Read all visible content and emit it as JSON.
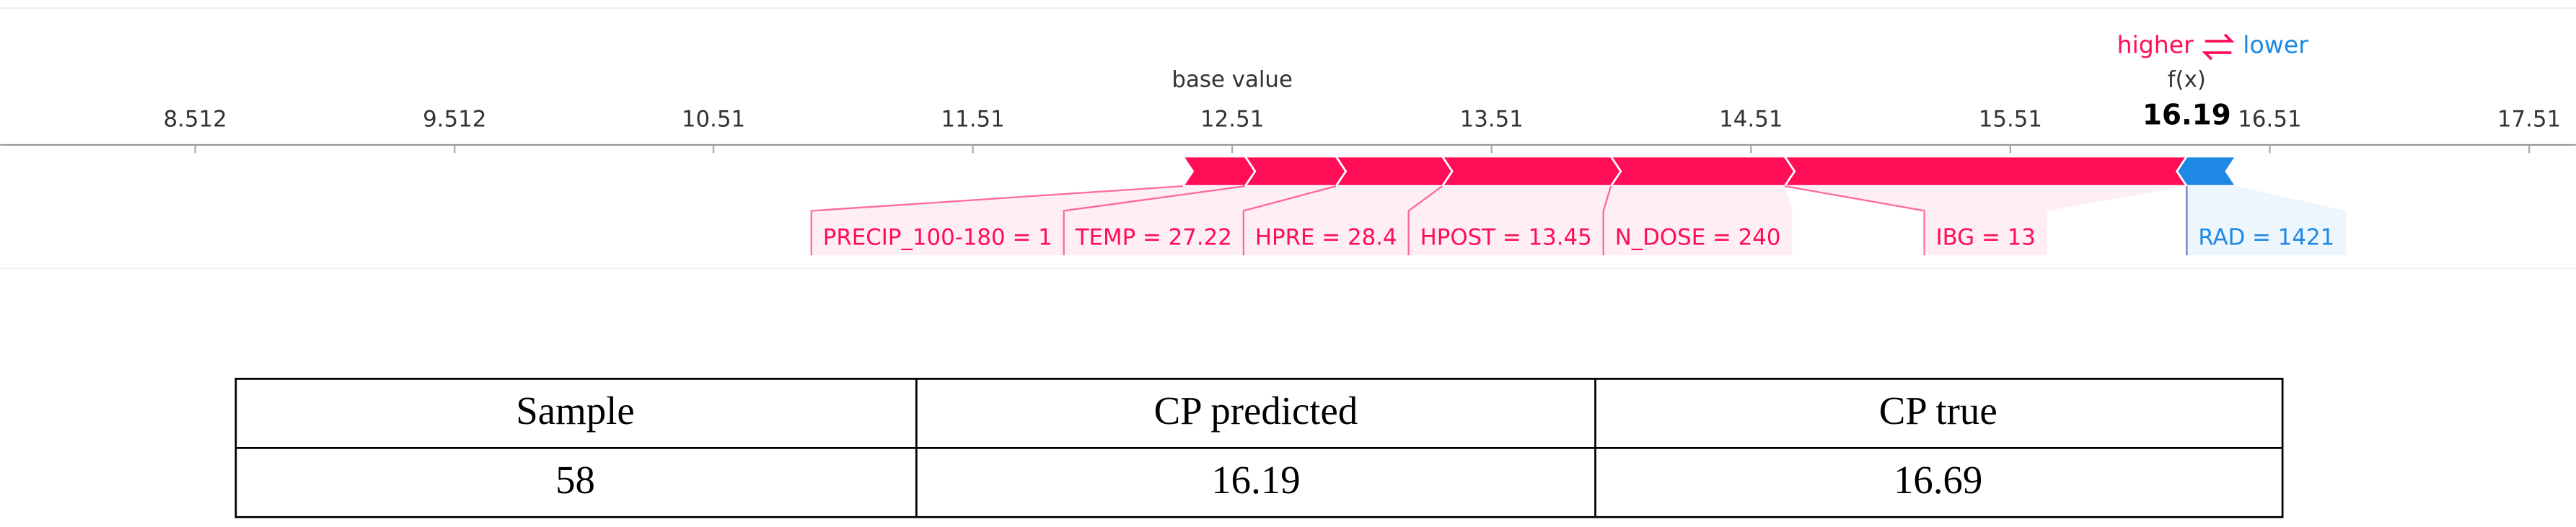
{
  "chart_data": {
    "type": "force",
    "xlim": [
      7.76,
      17.69
    ],
    "xticks": [
      8.512,
      9.512,
      10.51,
      11.51,
      12.51,
      13.51,
      14.51,
      15.51,
      16.51,
      17.51
    ],
    "base_value": 12.51,
    "base_label": "base value",
    "output_value": 16.19,
    "output_label": "f(x)",
    "higher_label": "higher",
    "lower_label": "lower",
    "positive_color": "#ff0d57",
    "negative_color": "#1e88e5",
    "categories": [
      "PRECIP_100-180 = 1",
      "TEMP = 27.22",
      "HPRE = 28.4",
      "HPOST = 13.45",
      "N_DOSE = 240",
      "IBG = 13",
      "RAD = 1421"
    ],
    "values": [
      0.24,
      0.35,
      0.41,
      0.65,
      0.67,
      1.55,
      -0.19
    ]
  },
  "table": {
    "header": [
      "Sample",
      "CP predicted",
      "CP true"
    ],
    "rows": [
      [
        58,
        16.19,
        16.69
      ]
    ]
  }
}
